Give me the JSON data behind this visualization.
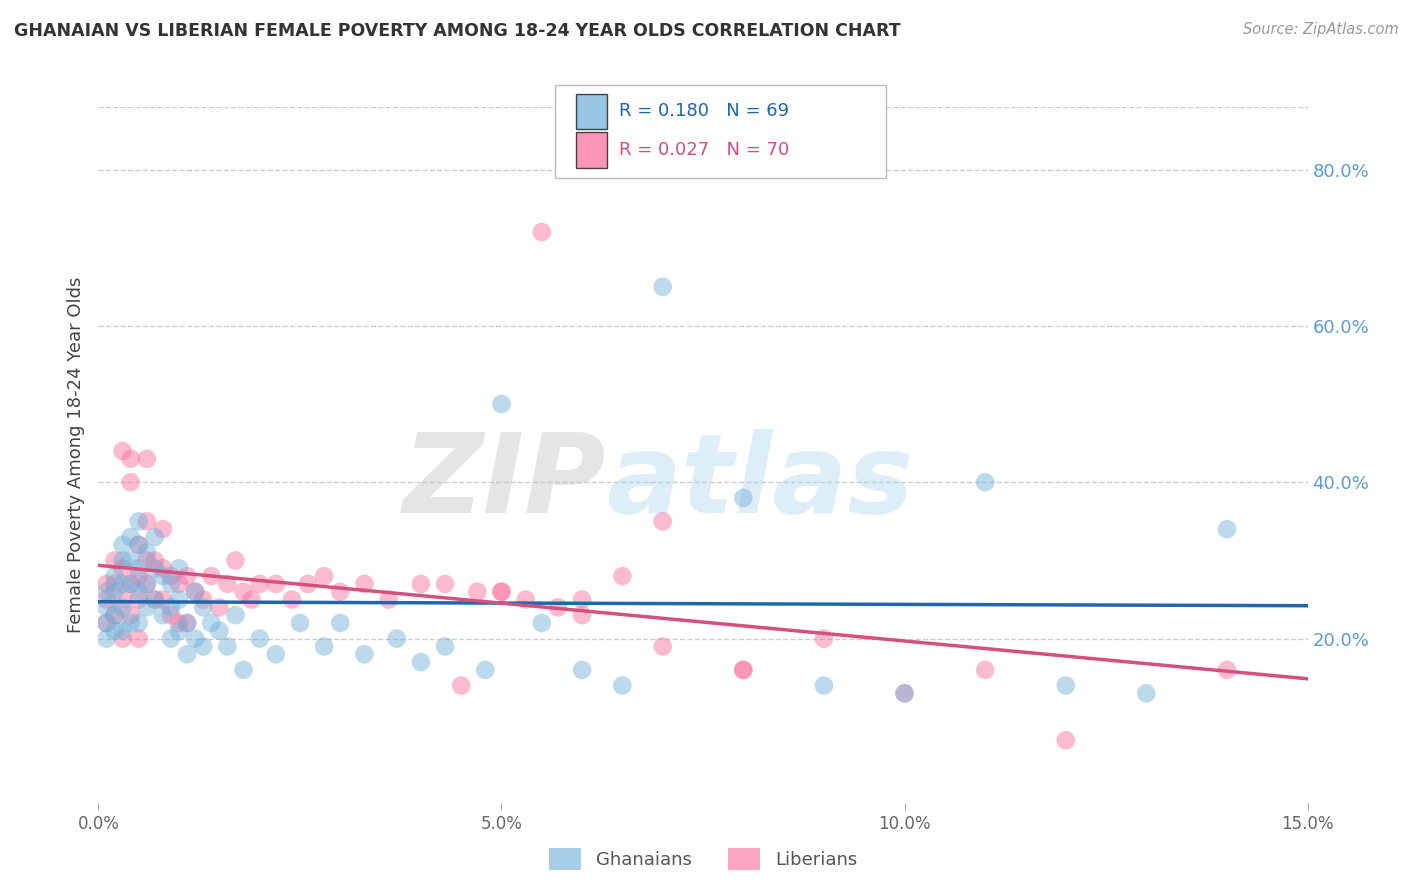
{
  "title": "GHANAIAN VS LIBERIAN FEMALE POVERTY AMONG 18-24 YEAR OLDS CORRELATION CHART",
  "source": "Source: ZipAtlas.com",
  "ylabel": "Female Poverty Among 18-24 Year Olds",
  "watermark_zip": "ZIP",
  "watermark_atlas": "atlas",
  "xlim": [
    0.0,
    0.15
  ],
  "ylim": [
    -0.01,
    0.88
  ],
  "xticks": [
    0.0,
    0.05,
    0.1,
    0.15
  ],
  "xticklabels": [
    "0.0%",
    "5.0%",
    "10.0%",
    "15.0%"
  ],
  "yticks_right": [
    0.2,
    0.4,
    0.6,
    0.8
  ],
  "ytick_right_labels": [
    "20.0%",
    "40.0%",
    "60.0%",
    "80.0%"
  ],
  "ghana_color": "#6baed6",
  "liberia_color": "#fb6a9a",
  "ghana_line_color": "#2166ac",
  "liberia_line_color": "#d45080",
  "legend_ghana_R": "R = 0.180",
  "legend_ghana_N": "N = 69",
  "legend_liberia_R": "R = 0.027",
  "legend_liberia_N": "N = 70",
  "ghana_x": [
    0.001,
    0.001,
    0.001,
    0.001,
    0.002,
    0.002,
    0.002,
    0.002,
    0.003,
    0.003,
    0.003,
    0.003,
    0.003,
    0.004,
    0.004,
    0.004,
    0.004,
    0.005,
    0.005,
    0.005,
    0.005,
    0.005,
    0.006,
    0.006,
    0.006,
    0.007,
    0.007,
    0.007,
    0.008,
    0.008,
    0.009,
    0.009,
    0.009,
    0.01,
    0.01,
    0.01,
    0.011,
    0.011,
    0.012,
    0.012,
    0.013,
    0.013,
    0.014,
    0.015,
    0.016,
    0.017,
    0.018,
    0.02,
    0.022,
    0.025,
    0.028,
    0.03,
    0.033,
    0.037,
    0.04,
    0.043,
    0.048,
    0.05,
    0.055,
    0.06,
    0.065,
    0.07,
    0.08,
    0.09,
    0.1,
    0.11,
    0.12,
    0.13,
    0.14
  ],
  "ghana_y": [
    0.26,
    0.24,
    0.22,
    0.2,
    0.28,
    0.26,
    0.23,
    0.21,
    0.32,
    0.3,
    0.27,
    0.24,
    0.21,
    0.33,
    0.3,
    0.27,
    0.22,
    0.35,
    0.32,
    0.29,
    0.26,
    0.22,
    0.31,
    0.27,
    0.24,
    0.33,
    0.29,
    0.25,
    0.28,
    0.23,
    0.27,
    0.24,
    0.2,
    0.29,
    0.25,
    0.21,
    0.22,
    0.18,
    0.26,
    0.2,
    0.24,
    0.19,
    0.22,
    0.21,
    0.19,
    0.23,
    0.16,
    0.2,
    0.18,
    0.22,
    0.19,
    0.22,
    0.18,
    0.2,
    0.17,
    0.19,
    0.16,
    0.5,
    0.22,
    0.16,
    0.14,
    0.65,
    0.38,
    0.14,
    0.13,
    0.4,
    0.14,
    0.13,
    0.34
  ],
  "liberia_x": [
    0.001,
    0.001,
    0.001,
    0.002,
    0.002,
    0.002,
    0.003,
    0.003,
    0.003,
    0.003,
    0.004,
    0.004,
    0.004,
    0.004,
    0.005,
    0.005,
    0.005,
    0.005,
    0.006,
    0.006,
    0.006,
    0.006,
    0.007,
    0.007,
    0.008,
    0.008,
    0.008,
    0.009,
    0.009,
    0.01,
    0.01,
    0.011,
    0.011,
    0.012,
    0.013,
    0.014,
    0.015,
    0.016,
    0.017,
    0.018,
    0.019,
    0.02,
    0.022,
    0.024,
    0.026,
    0.028,
    0.03,
    0.033,
    0.036,
    0.04,
    0.043,
    0.047,
    0.05,
    0.053,
    0.057,
    0.06,
    0.065,
    0.07,
    0.08,
    0.09,
    0.1,
    0.11,
    0.12,
    0.05,
    0.06,
    0.07,
    0.08,
    0.055,
    0.045,
    0.14
  ],
  "liberia_y": [
    0.27,
    0.25,
    0.22,
    0.3,
    0.27,
    0.23,
    0.44,
    0.29,
    0.25,
    0.2,
    0.43,
    0.4,
    0.27,
    0.23,
    0.32,
    0.28,
    0.25,
    0.2,
    0.35,
    0.3,
    0.27,
    0.43,
    0.3,
    0.25,
    0.34,
    0.29,
    0.25,
    0.28,
    0.23,
    0.27,
    0.22,
    0.28,
    0.22,
    0.26,
    0.25,
    0.28,
    0.24,
    0.27,
    0.3,
    0.26,
    0.25,
    0.27,
    0.27,
    0.25,
    0.27,
    0.28,
    0.26,
    0.27,
    0.25,
    0.27,
    0.27,
    0.26,
    0.26,
    0.25,
    0.24,
    0.25,
    0.28,
    0.35,
    0.16,
    0.2,
    0.13,
    0.16,
    0.07,
    0.26,
    0.23,
    0.19,
    0.16,
    0.72,
    0.14,
    0.16
  ]
}
